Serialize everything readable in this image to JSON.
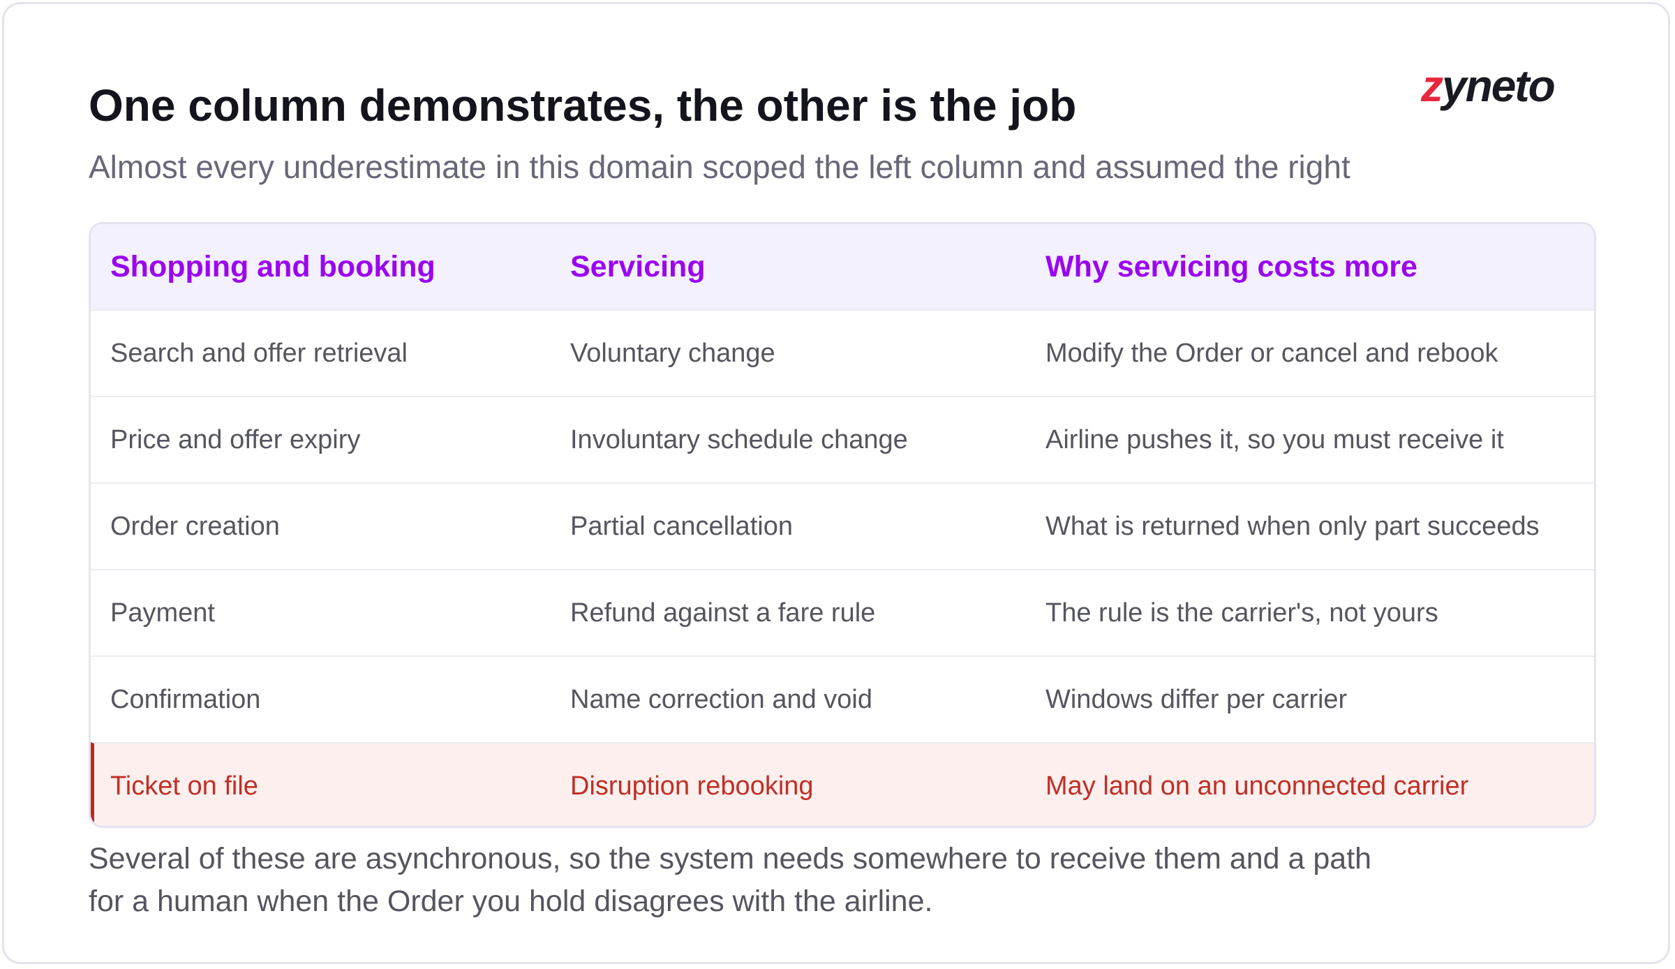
{
  "header": {
    "title": "One column demonstrates, the other is the job",
    "subtitle": "Almost every underestimate in this domain scoped the left column and assumed the right",
    "logo": "zyneto"
  },
  "table": {
    "columns": [
      "Shopping and booking",
      "Servicing",
      "Why servicing costs more"
    ],
    "rows": [
      [
        "Search and offer retrieval",
        "Voluntary change",
        "Modify the Order or cancel and rebook"
      ],
      [
        "Price and offer expiry",
        "Involuntary schedule change",
        "Airline pushes it, so you must receive it"
      ],
      [
        "Order creation",
        "Partial cancellation",
        "What is returned when only part succeeds"
      ],
      [
        "Payment",
        "Refund against a fare rule",
        "The rule is the carrier's, not yours"
      ],
      [
        "Confirmation",
        "Name correction and void",
        "Windows differ per carrier"
      ],
      [
        "Ticket on file",
        "Disruption rebooking",
        "May land on an unconnected carrier"
      ]
    ],
    "highlight_row": 5
  },
  "footer": [
    "Several of these are asynchronous, so the system needs somewhere to receive them and a path",
    "for a human when the Order you hold disagrees with the airline."
  ]
}
